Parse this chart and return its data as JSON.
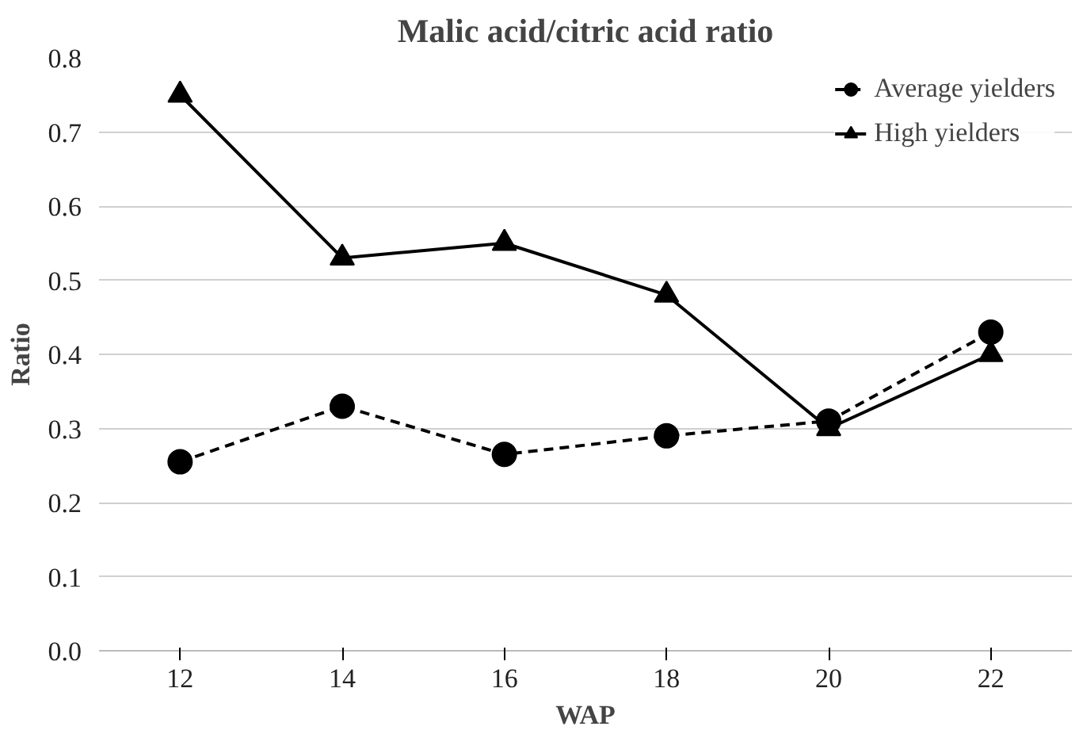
{
  "chart_data": {
    "type": "line",
    "title": "Malic acid/citric acid ratio",
    "xlabel": "WAP",
    "ylabel": "Ratio",
    "categories": [
      "12",
      "14",
      "16",
      "18",
      "20",
      "22"
    ],
    "series": [
      {
        "name": "Average yielders",
        "color": "#000000",
        "marker": "circle",
        "line_style": "dashed",
        "values": [
          0.255,
          0.33,
          0.265,
          0.29,
          0.31,
          0.43
        ]
      },
      {
        "name": "High yielders",
        "color": "#000000",
        "marker": "triangle",
        "line_style": "solid",
        "values": [
          0.75,
          0.53,
          0.55,
          0.48,
          0.3,
          0.4
        ]
      }
    ],
    "ylim": [
      0,
      0.8
    ],
    "yticks": [
      {
        "value": 0,
        "label": "0.0"
      },
      0.1,
      0.2,
      0.3,
      0.4,
      0.5,
      0.6,
      0.7,
      0.8
    ],
    "grid": "y",
    "legend": "top right"
  }
}
